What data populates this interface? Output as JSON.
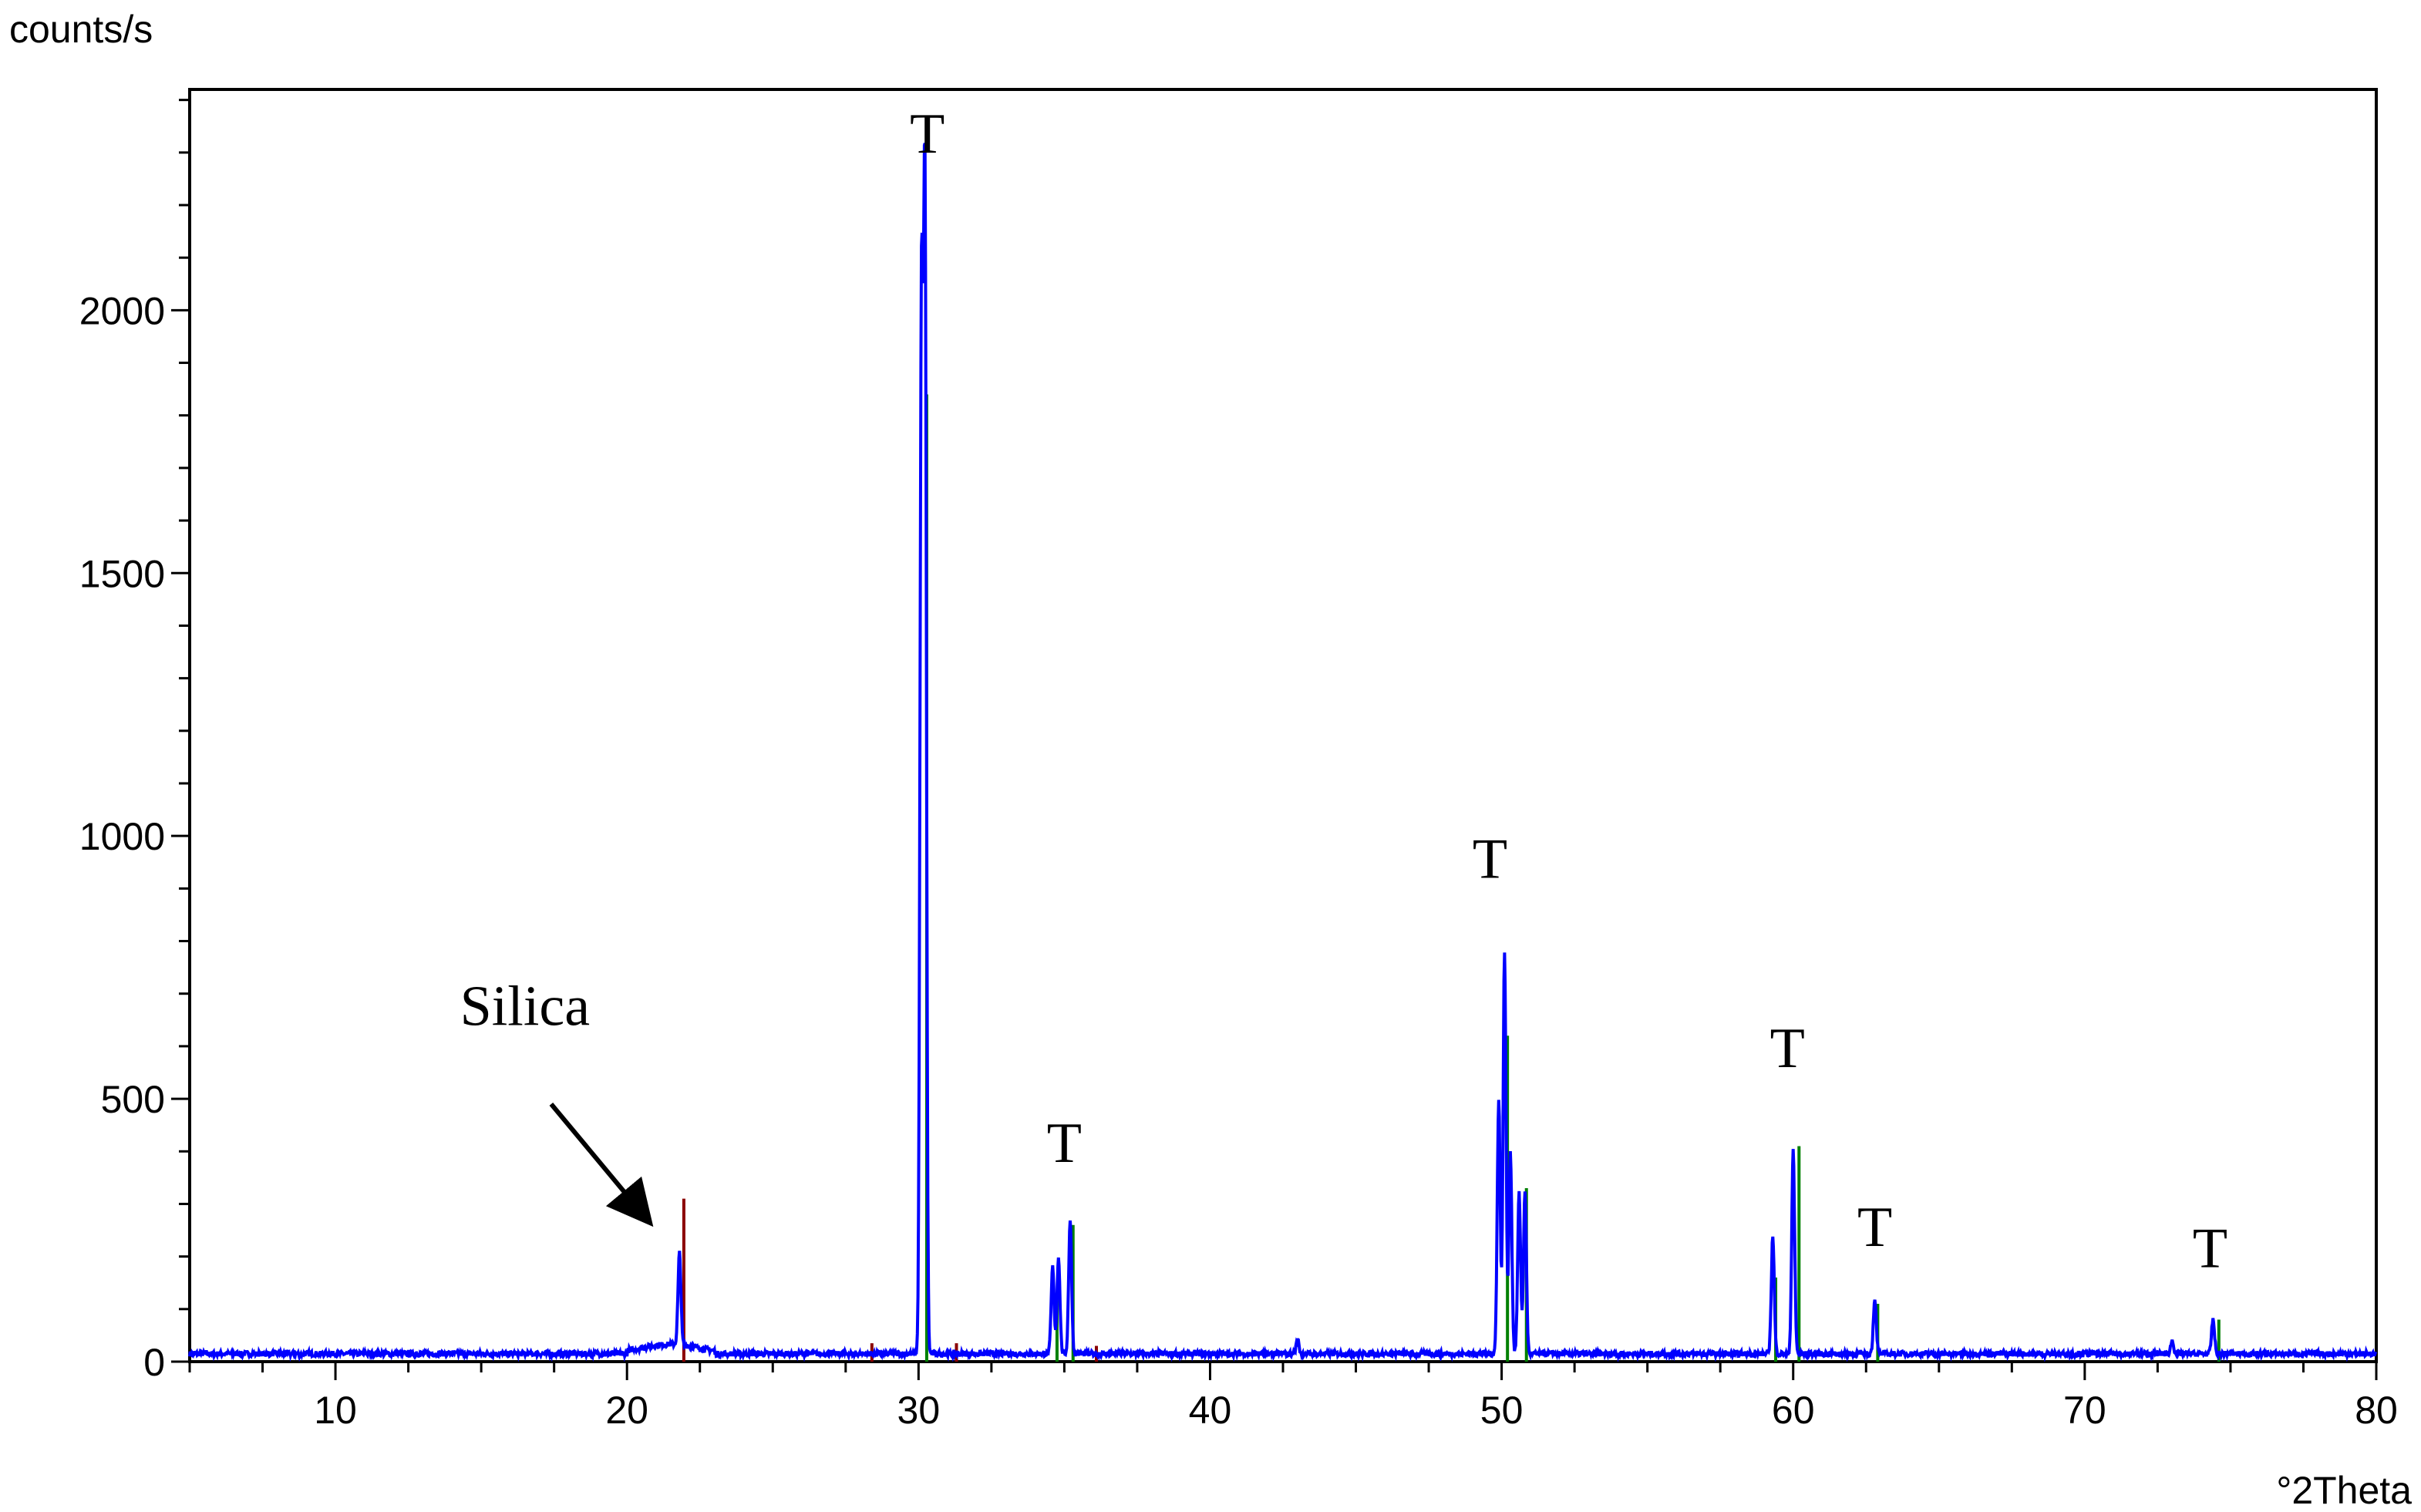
{
  "chart_data": {
    "type": "line",
    "ylabel": "counts/s",
    "xlabel": "°2Theta",
    "xlim": [
      5,
      80
    ],
    "ylim": [
      0,
      2420
    ],
    "x_ticks": [
      10,
      20,
      30,
      40,
      50,
      60,
      70,
      80
    ],
    "y_ticks": [
      0,
      500,
      1000,
      1500,
      2000
    ],
    "grid": false,
    "colors": {
      "pattern": "#0000ff",
      "reference_tetragonal": "#008000",
      "reference_silica": "#8b0000",
      "annotation": "#000000"
    },
    "series": [
      {
        "baseline": 15,
        "peaks": [
          {
            "x": 21.8,
            "y": 190
          },
          {
            "x": 30.1,
            "y": 2000
          },
          {
            "x": 30.22,
            "y": 2210
          },
          {
            "x": 34.6,
            "y": 180
          },
          {
            "x": 34.8,
            "y": 200
          },
          {
            "x": 35.2,
            "y": 270
          },
          {
            "x": 43.0,
            "y": 40
          },
          {
            "x": 49.9,
            "y": 500
          },
          {
            "x": 50.1,
            "y": 780
          },
          {
            "x": 50.3,
            "y": 400
          },
          {
            "x": 50.6,
            "y": 320
          },
          {
            "x": 50.8,
            "y": 320
          },
          {
            "x": 59.3,
            "y": 240
          },
          {
            "x": 60.0,
            "y": 400
          },
          {
            "x": 62.8,
            "y": 120
          },
          {
            "x": 73.0,
            "y": 40
          },
          {
            "x": 74.4,
            "y": 80
          }
        ]
      },
      {
        "sticks": [
          {
            "x": 30.28,
            "y": 1840
          },
          {
            "x": 34.75,
            "y": 120
          },
          {
            "x": 35.3,
            "y": 260
          },
          {
            "x": 50.2,
            "y": 620
          },
          {
            "x": 50.85,
            "y": 330
          },
          {
            "x": 59.4,
            "y": 160
          },
          {
            "x": 60.2,
            "y": 410
          },
          {
            "x": 62.9,
            "y": 110
          },
          {
            "x": 74.6,
            "y": 80
          }
        ]
      },
      {
        "sticks": [
          {
            "x": 21.95,
            "y": 310
          },
          {
            "x": 28.4,
            "y": 35
          },
          {
            "x": 31.3,
            "y": 35
          },
          {
            "x": 36.1,
            "y": 30
          }
        ]
      }
    ],
    "annotations": [
      {
        "text": "T",
        "x": 30.3,
        "y": 2300
      },
      {
        "text": "T",
        "x": 35.0,
        "y": 380
      },
      {
        "text": "T",
        "x": 49.6,
        "y": 920
      },
      {
        "text": "T",
        "x": 59.8,
        "y": 560
      },
      {
        "text": "T",
        "x": 62.8,
        "y": 220
      },
      {
        "text": "T",
        "x": 74.3,
        "y": 180
      },
      {
        "text": "Silica",
        "x": 16.5,
        "y": 640
      }
    ],
    "arrow": {
      "from": [
        17.4,
        490
      ],
      "to": [
        20.7,
        270
      ]
    }
  }
}
